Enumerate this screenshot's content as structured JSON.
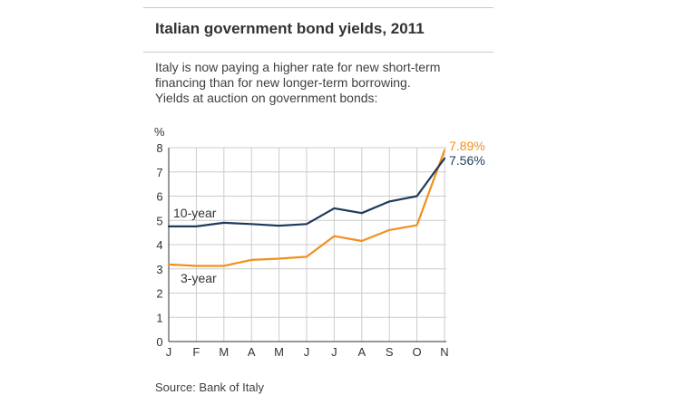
{
  "header": {
    "title": "Italian government bond yields, 2011"
  },
  "subtitle_lines": [
    "Italy is now paying a higher rate for new short-term",
    "financing than for new longer-term borrowing.",
    "Yields at auction on government bonds:"
  ],
  "source": "Source: Bank of Italy",
  "colors": {
    "ten_year": "#1f3a5a",
    "three_year": "#f0901e",
    "grid": "#cccccc",
    "axis": "#333333",
    "text": "#333333"
  },
  "chart_data": {
    "type": "line",
    "title": "",
    "xlabel": "",
    "ylabel": "%",
    "ylim": [
      0,
      8
    ],
    "yticks": [
      0,
      1,
      2,
      3,
      4,
      5,
      6,
      7,
      8
    ],
    "grid": true,
    "categories": [
      "J",
      "F",
      "M",
      "A",
      "M",
      "J",
      "J",
      "A",
      "S",
      "O",
      "N"
    ],
    "series": [
      {
        "name": "10-year",
        "color": "#1f3a5a",
        "values": [
          4.75,
          4.75,
          4.9,
          4.85,
          4.78,
          4.85,
          5.5,
          5.3,
          5.78,
          6.0,
          7.56
        ],
        "end_label": "7.56%"
      },
      {
        "name": "3-year",
        "color": "#f0901e",
        "values": [
          3.18,
          3.12,
          3.12,
          3.37,
          3.42,
          3.5,
          4.35,
          4.15,
          4.6,
          4.8,
          7.89
        ],
        "end_label": "7.89%"
      }
    ]
  }
}
